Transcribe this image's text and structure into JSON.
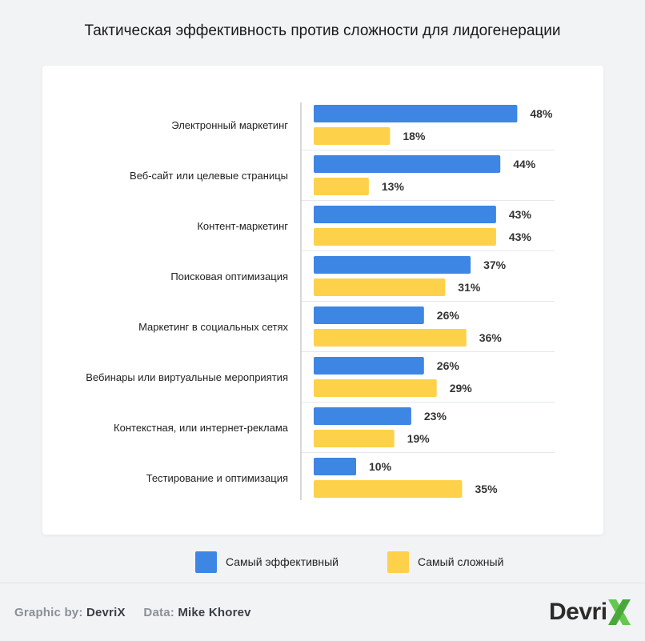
{
  "title": "Тактическая эффективность против сложности для лидогенерации",
  "colors": {
    "effective": "#3d86e4",
    "difficult": "#fdd14a",
    "logo_accent": "#64c84e"
  },
  "chart_data": {
    "type": "bar",
    "orientation": "horizontal",
    "title": "Тактическая эффективность против сложности для лидогенерации",
    "xlim": [
      0,
      55
    ],
    "grid": false,
    "categories": [
      "Электронный маркетинг",
      "Веб-сайт или целевые страницы",
      "Контент-маркетинг",
      "Поисковая оптимизация",
      "Маркетинг в социальных сетях",
      "Вебинары или виртуальные мероприятия",
      "Контекстная, или интернет-реклама",
      "Тестирование и оптимизация"
    ],
    "series": [
      {
        "name": "Самый эффективный",
        "values": [
          48,
          44,
          43,
          37,
          26,
          26,
          23,
          10
        ]
      },
      {
        "name": "Самый сложный",
        "values": [
          18,
          13,
          43,
          31,
          36,
          29,
          19,
          35
        ]
      }
    ],
    "value_suffix": "%",
    "legend_position": "bottom"
  },
  "legend": {
    "effective_label": "Самый эффективный",
    "difficult_label": "Самый сложный"
  },
  "footer": {
    "graphic_by_label": "Graphic by:",
    "graphic_by_value": "DevriX",
    "data_label": "Data:",
    "data_value": "Mike Khorev",
    "logo_text": "Devri"
  }
}
